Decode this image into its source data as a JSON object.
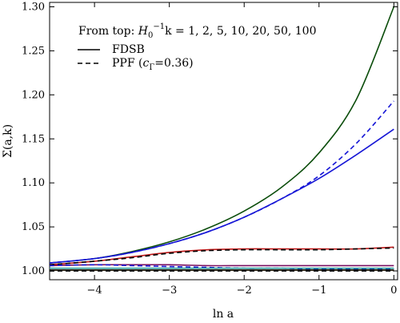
{
  "chart_data": {
    "type": "line",
    "xlabel": "ln a",
    "ylabel": "Σ(a,k)",
    "xlim": [
      -4.6,
      0.05
    ],
    "ylim": [
      0.99,
      1.305
    ],
    "xticks": [
      -4,
      -3,
      -2,
      -1,
      0
    ],
    "yticks": [
      1.0,
      1.05,
      1.1,
      1.15,
      1.2,
      1.25,
      1.3
    ],
    "xtick_labels": [
      "−4",
      "−3",
      "−2",
      "−1",
      "0"
    ],
    "ytick_labels": [
      "1.00",
      "1.05",
      "1.10",
      "1.15",
      "1.20",
      "1.25",
      "1.30"
    ],
    "legend": {
      "placement": "top-left",
      "header_prefix": "From top: ",
      "header_value": " = 1, 2, 5, 10, 20, 50, 100",
      "solid_label": "FDSB",
      "dashed_label": "PPF (",
      "dashed_label_value": "=0.36)"
    },
    "x": [
      -4.6,
      -4.0,
      -3.5,
      -3.0,
      -2.5,
      -2.0,
      -1.5,
      -1.0,
      -0.5,
      0.0
    ],
    "series": [
      {
        "color": "#0b4d0b",
        "style": "solid",
        "values": [
          1.009,
          1.014,
          1.022,
          1.033,
          1.048,
          1.068,
          1.095,
          1.134,
          1.195,
          1.3
        ]
      },
      {
        "color": "#1616d6",
        "style": "solid",
        "values": [
          1.009,
          1.014,
          1.021,
          1.031,
          1.044,
          1.061,
          1.082,
          1.105,
          1.132,
          1.161
        ]
      },
      {
        "color": "#1616d6",
        "style": "dashed",
        "values": [
          1.009,
          1.014,
          1.021,
          1.031,
          1.044,
          1.061,
          1.082,
          1.108,
          1.145,
          1.193
        ]
      },
      {
        "color": "#c01818",
        "style": "solid",
        "values": [
          1.007,
          1.011,
          1.016,
          1.021,
          1.024,
          1.025,
          1.025,
          1.025,
          1.025,
          1.027
        ]
      },
      {
        "color": "#000000",
        "style": "dashed",
        "values": [
          1.007,
          1.011,
          1.015,
          1.02,
          1.023,
          1.024,
          1.024,
          1.024,
          1.025,
          1.026
        ]
      },
      {
        "color": "#7a1060",
        "style": "solid",
        "values": [
          1.006,
          1.007,
          1.007,
          1.007,
          1.006,
          1.006,
          1.006,
          1.006,
          1.006,
          1.006
        ]
      },
      {
        "color": "#1616d6",
        "style": "dashed",
        "values": [
          1.006,
          1.007,
          1.006,
          1.005,
          1.004,
          1.003,
          1.003,
          1.002,
          1.002,
          1.002
        ]
      },
      {
        "color": "#2a9a9a",
        "style": "solid",
        "values": [
          1.003,
          1.003,
          1.003,
          1.003,
          1.003,
          1.003,
          1.003,
          1.003,
          1.003,
          1.003
        ]
      },
      {
        "color": "#d4a020",
        "style": "solid",
        "values": [
          1.001,
          1.001,
          1.001,
          1.001,
          1.001,
          1.001,
          1.001,
          1.001,
          1.001,
          1.001
        ]
      },
      {
        "color": "#000000",
        "style": "solid",
        "values": [
          1.001,
          1.001,
          1.001,
          1.001,
          1.001,
          1.001,
          1.001,
          1.001,
          1.001,
          1.001
        ]
      },
      {
        "color": "#000000",
        "style": "dashed",
        "values": [
          1.0,
          1.0,
          1.0,
          1.0,
          1.0,
          1.0,
          1.0,
          1.0,
          1.0,
          1.0
        ]
      }
    ]
  }
}
